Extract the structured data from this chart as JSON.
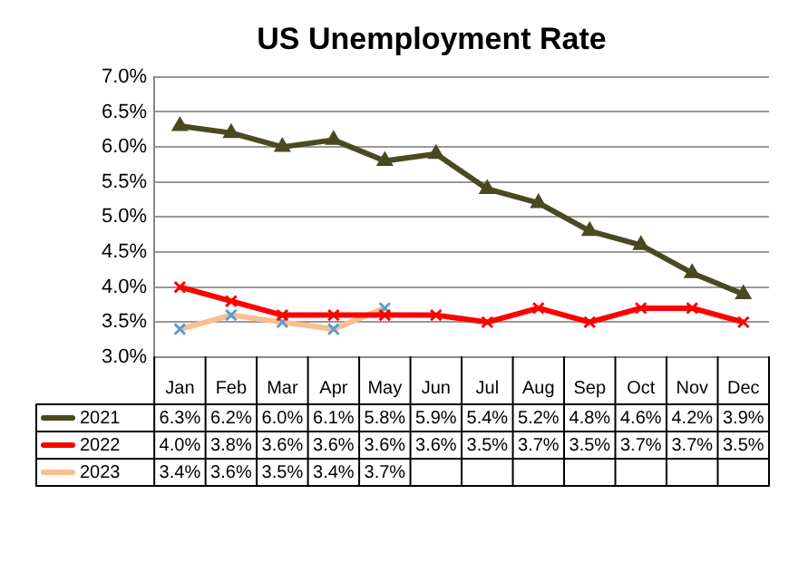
{
  "chart_data": {
    "type": "line",
    "title": "US Unemployment Rate",
    "categories": [
      "Jan",
      "Feb",
      "Mar",
      "Apr",
      "May",
      "Jun",
      "Jul",
      "Aug",
      "Sep",
      "Oct",
      "Nov",
      "Dec"
    ],
    "series": [
      {
        "name": "2021",
        "color": "#4a4a22",
        "marker": "triangle",
        "values": [
          6.3,
          6.2,
          6.0,
          6.1,
          5.8,
          5.9,
          5.4,
          5.2,
          4.8,
          4.6,
          4.2,
          3.9
        ],
        "value_labels": [
          "6.3%",
          "6.2%",
          "6.0%",
          "6.1%",
          "5.8%",
          "5.9%",
          "5.4%",
          "5.2%",
          "4.8%",
          "4.6%",
          "4.2%",
          "3.9%"
        ]
      },
      {
        "name": "2022",
        "color": "#ff0000",
        "marker": "cross",
        "values": [
          4.0,
          3.8,
          3.6,
          3.6,
          3.6,
          3.6,
          3.5,
          3.7,
          3.5,
          3.7,
          3.7,
          3.5
        ],
        "value_labels": [
          "4.0%",
          "3.8%",
          "3.6%",
          "3.6%",
          "3.6%",
          "3.6%",
          "3.5%",
          "3.7%",
          "3.5%",
          "3.7%",
          "3.7%",
          "3.5%"
        ]
      },
      {
        "name": "2023",
        "color": "#f8c08c",
        "marker": "cross",
        "values": [
          3.4,
          3.6,
          3.5,
          3.4,
          3.7,
          null,
          null,
          null,
          null,
          null,
          null,
          null
        ],
        "value_labels": [
          "3.4%",
          "3.6%",
          "3.5%",
          "3.4%",
          "3.7%",
          null,
          null,
          null,
          null,
          null,
          null,
          null
        ]
      }
    ],
    "ylim": [
      3.0,
      7.0
    ],
    "yticks": [
      {
        "value": 3.0,
        "label": "3.0%"
      },
      {
        "value": 3.5,
        "label": "3.5%"
      },
      {
        "value": 4.0,
        "label": "4.0%"
      },
      {
        "value": 4.5,
        "label": "4.5%"
      },
      {
        "value": 5.0,
        "label": "5.0%"
      },
      {
        "value": 5.5,
        "label": "5.5%"
      },
      {
        "value": 6.0,
        "label": "6.0%"
      },
      {
        "value": 6.5,
        "label": "6.5%"
      },
      {
        "value": 7.0,
        "label": "7.0%"
      }
    ],
    "grid": "y",
    "legend": "bottom",
    "line_style": "solid"
  }
}
